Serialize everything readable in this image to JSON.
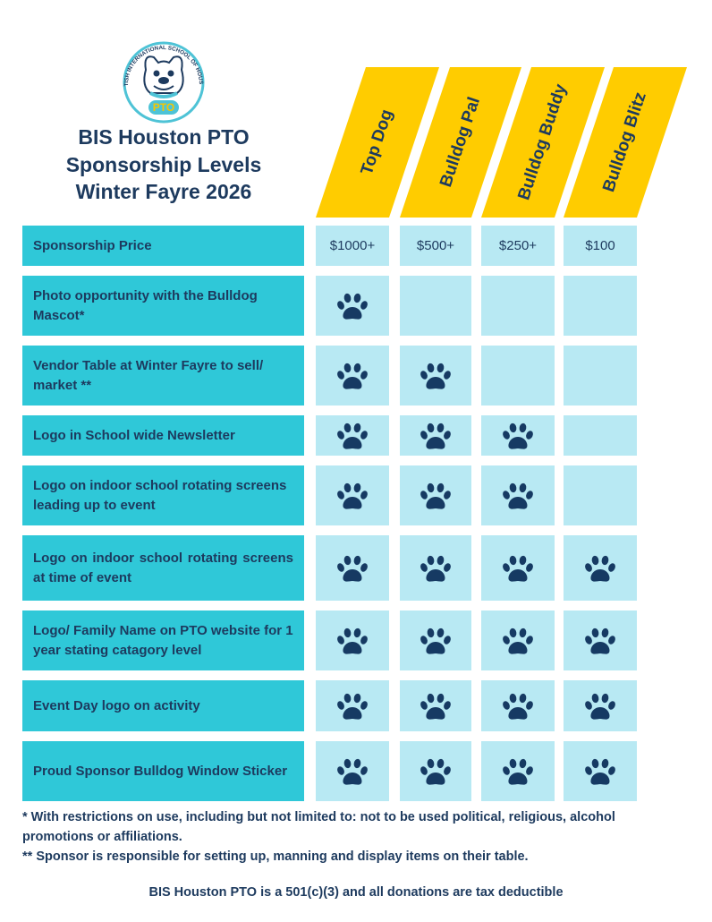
{
  "logo": {
    "school": "BRITISH INTERNATIONAL SCHOOL OF HOUSTON",
    "badge": "PTO"
  },
  "header": {
    "title": [
      "BIS Houston PTO",
      "Sponsorship Levels",
      "Winter Fayre 2026"
    ]
  },
  "table": {
    "columns": [
      "Top Dog",
      "Bulldog Pal",
      "Bulldog Buddy",
      "Bulldog Blitz"
    ],
    "rows": [
      {
        "label": "Sponsorship Price",
        "cells": [
          "$1000+",
          "$500+",
          "$250+",
          "$100"
        ]
      },
      {
        "label": "Photo opportunity with the Bulldog Mascot*",
        "cells": [
          true,
          false,
          false,
          false
        ]
      },
      {
        "label": "Vendor Table at Winter Fayre to sell/ market **",
        "cells": [
          true,
          true,
          false,
          false
        ]
      },
      {
        "label": "Logo in School wide Newsletter",
        "cells": [
          true,
          true,
          true,
          false
        ]
      },
      {
        "label": "Logo on indoor school rotating screens leading up to event",
        "cells": [
          true,
          true,
          true,
          false
        ]
      },
      {
        "label": "Logo on indoor school rotating screens at time of event",
        "cells": [
          true,
          true,
          true,
          true
        ]
      },
      {
        "label": "Logo/ Family Name on PTO website for 1 year stating catagory level",
        "cells": [
          true,
          true,
          true,
          true
        ]
      },
      {
        "label": "Event Day logo on activity",
        "cells": [
          true,
          true,
          true,
          true
        ]
      },
      {
        "label": "Proud Sponsor Bulldog Window Sticker",
        "cells": [
          true,
          true,
          true,
          true
        ]
      }
    ]
  },
  "footnotes": [
    "* With restrictions on use, including but not limited to: not to be used political, religious, alcohol promotions or affiliations.",
    "** Sponsor is responsible for setting up, manning and display items on their table."
  ],
  "footer": "BIS Houston PTO is a 501(c)(3) and all donations are tax deductible"
}
